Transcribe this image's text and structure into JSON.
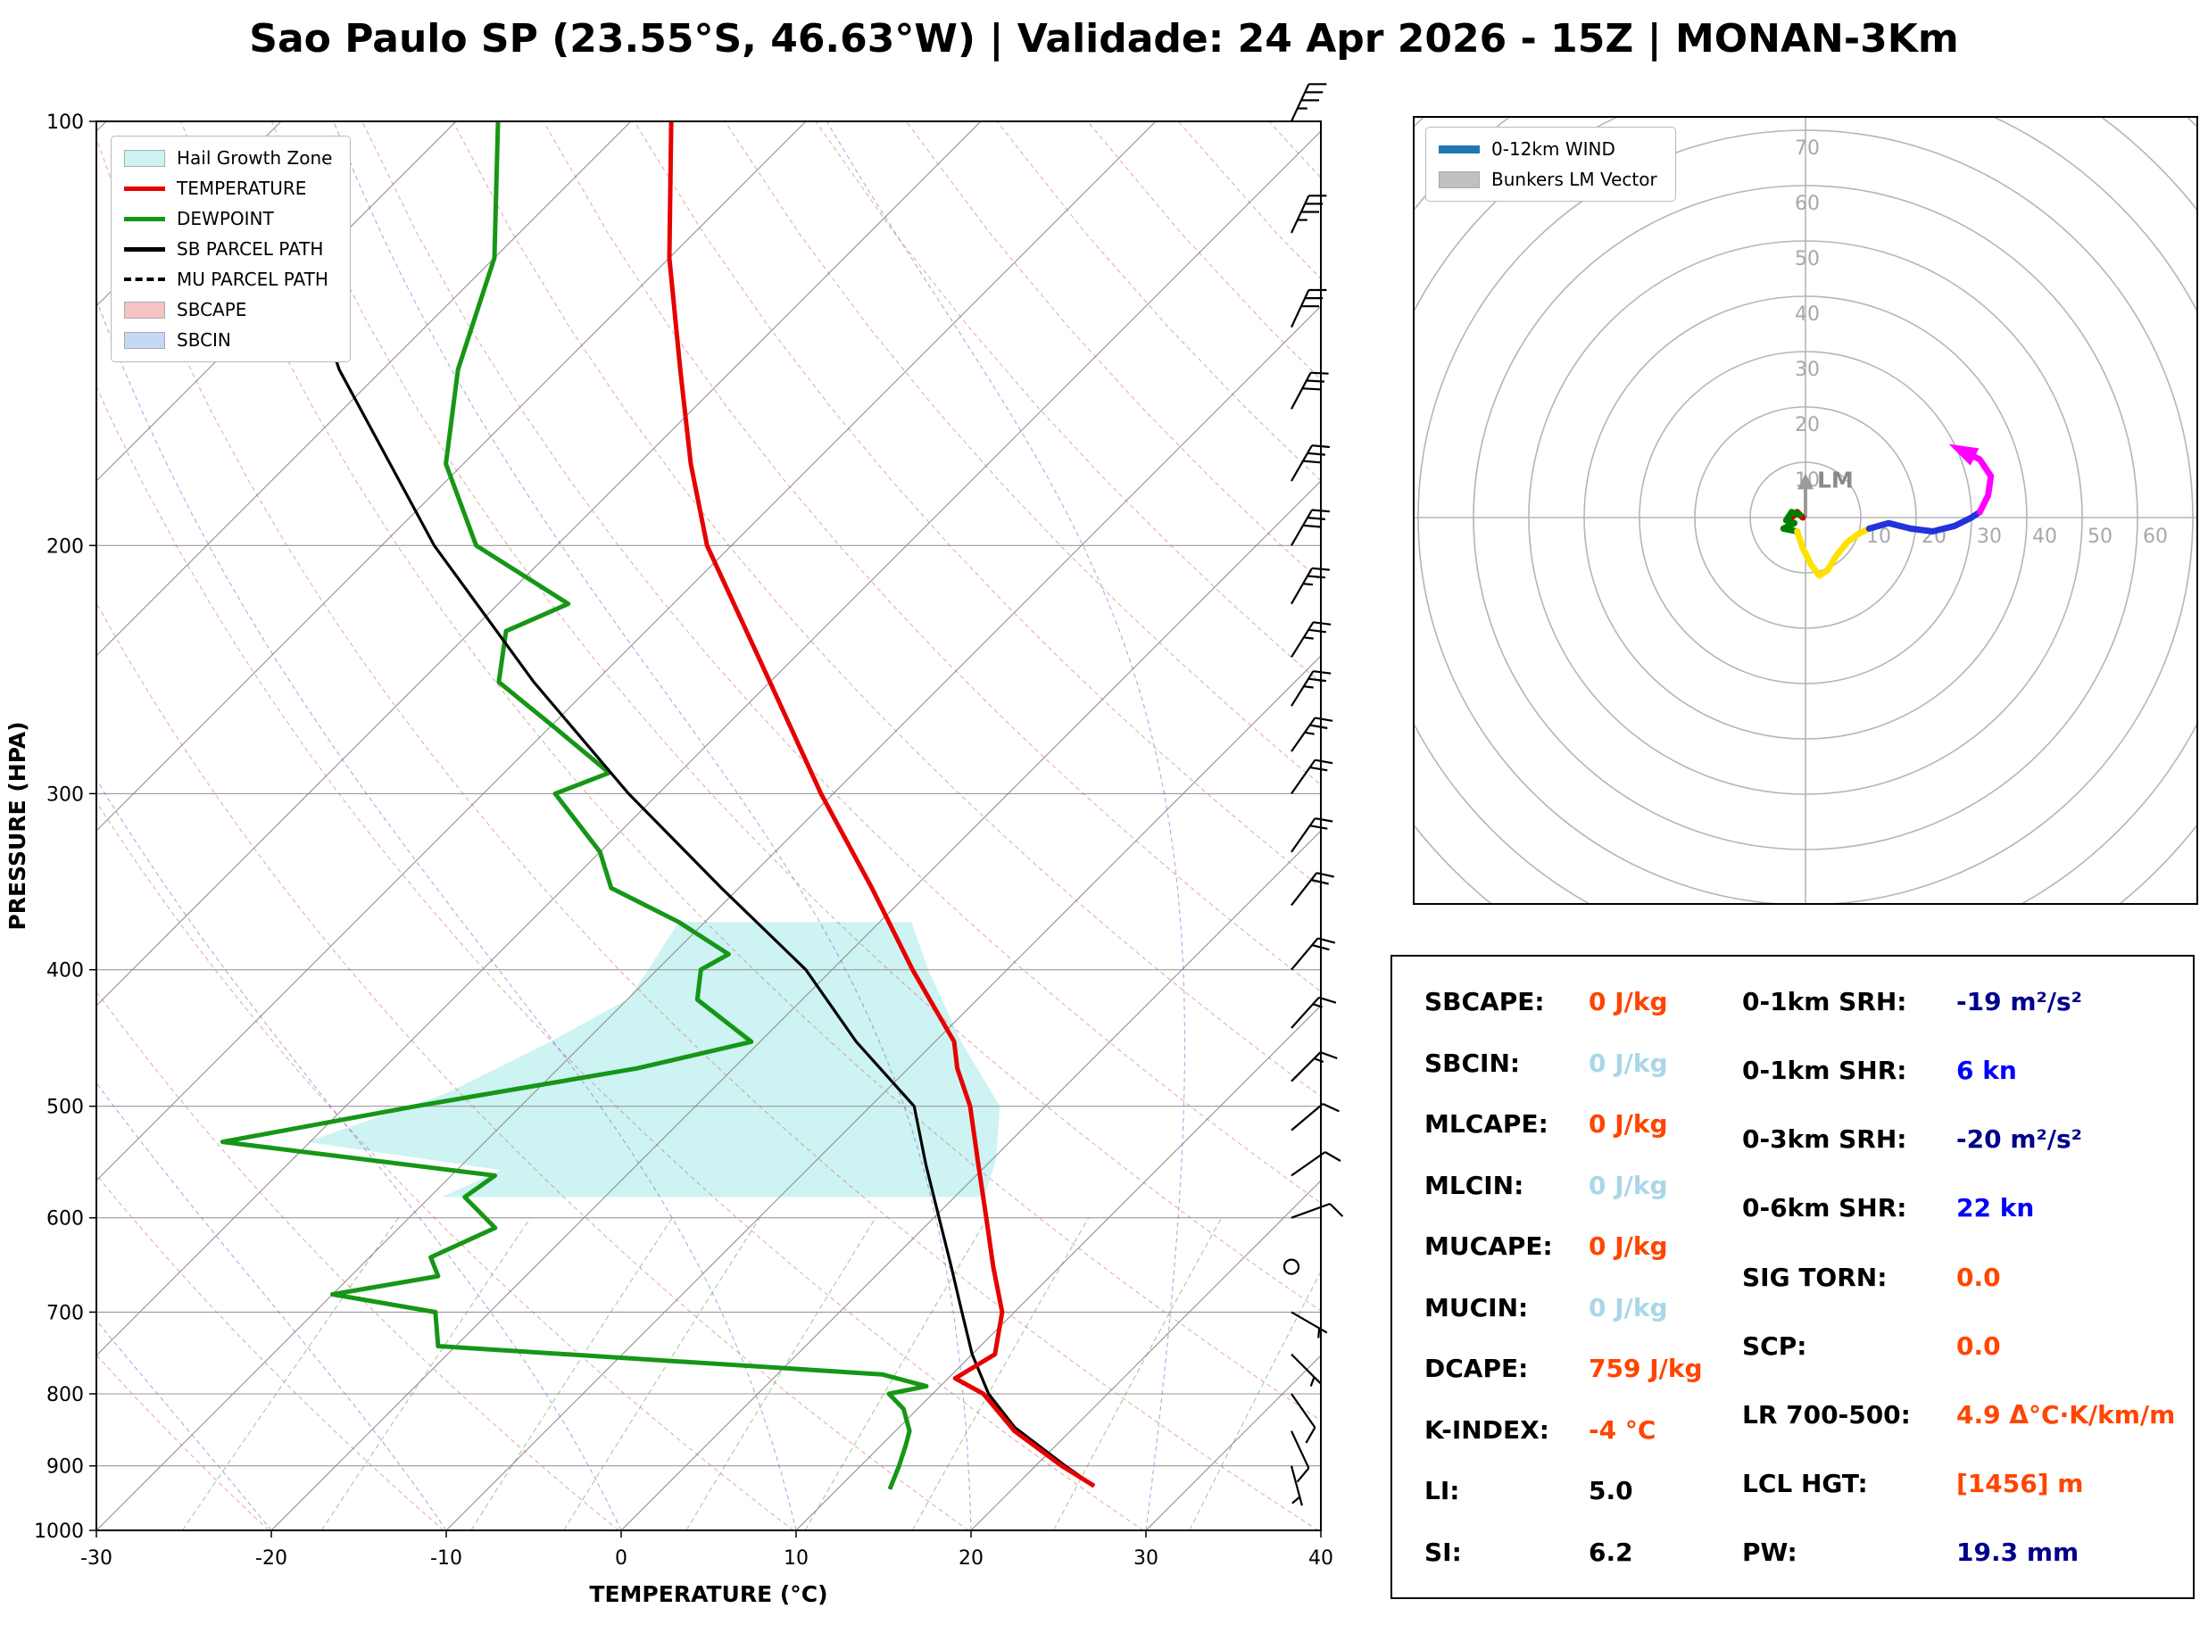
{
  "title": "Sao Paulo SP (23.55°S, 46.63°W) | Validade: 24 Apr 2026 - 15Z | MONAN-3Km",
  "skewt": {
    "xlabel": "TEMPERATURE (°C)",
    "ylabel": "PRESSURE (HPA)",
    "x_ticks": [
      -30,
      -20,
      -10,
      0,
      10,
      20,
      30,
      40
    ],
    "y_ticks": [
      100,
      200,
      300,
      400,
      500,
      600,
      700,
      800,
      900,
      1000
    ],
    "legend": [
      {
        "label": "Hail Growth Zone",
        "type": "patch",
        "color": "#cdf3f3",
        "icon": "hail-zone-swatch"
      },
      {
        "label": "TEMPERATURE",
        "type": "line",
        "color": "#e60000",
        "icon": "temperature-swatch"
      },
      {
        "label": "DEWPOINT",
        "type": "line",
        "color": "#169616",
        "icon": "dewpoint-swatch"
      },
      {
        "label": "SB PARCEL PATH",
        "type": "line",
        "color": "#000000",
        "icon": "sb-parcel-swatch"
      },
      {
        "label": "MU PARCEL PATH",
        "type": "dashed",
        "color": "#000000",
        "icon": "mu-parcel-swatch"
      },
      {
        "label": "SBCAPE",
        "type": "patch",
        "color": "#f6c3c3",
        "icon": "sbcape-swatch"
      },
      {
        "label": "SBCIN",
        "type": "patch",
        "color": "#c3d9f6",
        "icon": "sbcin-swatch"
      }
    ]
  },
  "hodograph": {
    "ring_labels": [
      10,
      20,
      30,
      40,
      50,
      60,
      70
    ],
    "lm_label": "LM",
    "legend": [
      {
        "label": "0-12km WIND",
        "type": "thickline",
        "color": "#1f77b4",
        "icon": "wind-trace-swatch"
      },
      {
        "label": "Bunkers LM Vector",
        "type": "patch",
        "color": "#c0c0c0",
        "icon": "bunkers-lm-swatch"
      }
    ]
  },
  "indices": {
    "left": [
      {
        "label": "SBCAPE:",
        "value": "0 J/kg",
        "color": "orange"
      },
      {
        "label": "SBCIN:",
        "value": "0 J/kg",
        "color": "lightblue"
      },
      {
        "label": "MLCAPE:",
        "value": "0 J/kg",
        "color": "orange"
      },
      {
        "label": "MLCIN:",
        "value": "0 J/kg",
        "color": "lightblue"
      },
      {
        "label": "MUCAPE:",
        "value": "0 J/kg",
        "color": "orange"
      },
      {
        "label": "MUCIN:",
        "value": "0 J/kg",
        "color": "lightblue"
      },
      {
        "label": "DCAPE:",
        "value": "759 J/kg",
        "color": "orange"
      },
      {
        "label": "K-INDEX:",
        "value": "-4 °C",
        "color": "orange"
      },
      {
        "label": "LI:",
        "value": "5.0",
        "color": "black"
      },
      {
        "label": "SI:",
        "value": "6.2",
        "color": "black"
      }
    ],
    "right": [
      {
        "label": "0-1km SRH:",
        "value": "-19 m²/s²",
        "color": "navy"
      },
      {
        "label": "0-1km SHR:",
        "value": "6 kn",
        "color": "blue"
      },
      {
        "label": "0-3km SRH:",
        "value": "-20 m²/s²",
        "color": "navy"
      },
      {
        "label": "0-6km SHR:",
        "value": "22 kn",
        "color": "blue"
      },
      {
        "label": "SIG TORN:",
        "value": "0.0",
        "color": "orange"
      },
      {
        "label": "SCP:",
        "value": "0.0",
        "color": "orange"
      },
      {
        "label": "LR 700-500:",
        "value": "4.9 Δ°C·K/km/m",
        "color": "orange"
      },
      {
        "label": "LCL HGT:",
        "value": "[1456] m",
        "color": "orange"
      },
      {
        "label": "PW:",
        "value": "19.3 mm",
        "color": "navy"
      }
    ]
  },
  "chart_data": {
    "type": "line",
    "projection": "skew-T log-P",
    "title": "Sao Paulo SP (23.55°S, 46.63°W) | Validade: 24 Apr 2026 - 15Z | MONAN-3Km",
    "xlabel": "TEMPERATURE (°C)",
    "ylabel": "PRESSURE (HPA)",
    "xlim": [
      -30,
      40
    ],
    "pressure_range": [
      1000,
      100
    ],
    "y_scale": "log",
    "series": [
      {
        "name": "TEMPERATURE",
        "color": "#e60000",
        "pressure": [
          930,
          900,
          850,
          800,
          780,
          750,
          700,
          650,
          600,
          550,
          500,
          470,
          450,
          400,
          350,
          300,
          250,
          200,
          175,
          150,
          125,
          100
        ],
        "temp": [
          24.5,
          21.5,
          16.8,
          12.9,
          10.4,
          11.3,
          9.3,
          6.2,
          3.0,
          -0.5,
          -4.3,
          -7.2,
          -8.9,
          -15.4,
          -22.4,
          -30.7,
          -40.0,
          -51.4,
          -57.0,
          -63.0,
          -70.0,
          -77.7
        ]
      },
      {
        "name": "DEWPOINT",
        "color": "#169616",
        "pressure": [
          935,
          900,
          870,
          850,
          820,
          800,
          790,
          775,
          740,
          700,
          680,
          660,
          640,
          610,
          580,
          560,
          530,
          500,
          470,
          450,
          420,
          400,
          390,
          370,
          350,
          330,
          300,
          290,
          270,
          250,
          230,
          220,
          200,
          175,
          150,
          125,
          100
        ],
        "temp": [
          13.0,
          12.2,
          11.4,
          10.8,
          9.2,
          7.5,
          9.2,
          6.0,
          -21.0,
          -23.1,
          -30.0,
          -25.0,
          -26.5,
          -24.5,
          -28.0,
          -27.5,
          -45.0,
          -36.0,
          -25.5,
          -20.5,
          -26.0,
          -27.5,
          -26.8,
          -31.5,
          -37.3,
          -40.0,
          -45.9,
          -44.0,
          -49.5,
          -55.5,
          -58.0,
          -56.0,
          -64.6,
          -71.0,
          -75.7,
          -80.0,
          -87.6
        ]
      },
      {
        "name": "SB PARCEL PATH",
        "color": "#000000",
        "pressure": [
          930,
          900,
          845,
          800,
          750,
          700,
          650,
          600,
          550,
          500,
          450,
          400,
          350,
          300,
          250,
          200,
          150,
          125
        ],
        "temp": [
          24.5,
          21.7,
          16.6,
          13.2,
          10.0,
          7.0,
          3.8,
          0.3,
          -3.5,
          -7.5,
          -14.5,
          -21.5,
          -31.0,
          -41.7,
          -53.5,
          -67.0,
          -82.5,
          -91.0
        ]
      },
      {
        "name": "MU PARCEL PATH",
        "color": "#000000",
        "pressure": [
          930,
          900,
          845,
          800,
          750,
          700,
          650,
          600,
          550,
          500,
          450,
          400,
          350,
          300,
          250,
          200,
          150,
          125
        ],
        "temp": [
          24.5,
          21.7,
          16.6,
          13.2,
          10.0,
          7.0,
          3.8,
          0.3,
          -3.5,
          -7.5,
          -14.5,
          -21.5,
          -31.0,
          -41.7,
          -53.5,
          -67.0,
          -82.5,
          -91.0
        ]
      }
    ],
    "hail_growth_zone": {
      "color": "#cdf3f3",
      "pressure": [
        370,
        370,
        400,
        450,
        500,
        545,
        580,
        580,
        555,
        530,
        490,
        450,
        420,
        400,
        370
      ],
      "temp": [
        -31.5,
        -18.2,
        -14.5,
        -8.5,
        -2.6,
        0.2,
        1.7,
        -29.3,
        -27.5,
        -40.2,
        -35.0,
        -32.0,
        -30.0,
        -30.5,
        -31.5
      ]
    },
    "wind_barbs": [
      {
        "p": 100,
        "dir": 25,
        "spd": 35
      },
      {
        "p": 120,
        "dir": 25,
        "spd": 35
      },
      {
        "p": 140,
        "dir": 25,
        "spd": 30
      },
      {
        "p": 160,
        "dir": 28,
        "spd": 30
      },
      {
        "p": 180,
        "dir": 30,
        "spd": 30
      },
      {
        "p": 200,
        "dir": 30,
        "spd": 28
      },
      {
        "p": 220,
        "dir": 30,
        "spd": 25
      },
      {
        "p": 240,
        "dir": 32,
        "spd": 25
      },
      {
        "p": 260,
        "dir": 32,
        "spd": 25
      },
      {
        "p": 280,
        "dir": 35,
        "spd": 25
      },
      {
        "p": 300,
        "dir": 35,
        "spd": 22
      },
      {
        "p": 330,
        "dir": 35,
        "spd": 20
      },
      {
        "p": 360,
        "dir": 38,
        "spd": 20
      },
      {
        "p": 400,
        "dir": 40,
        "spd": 18
      },
      {
        "p": 440,
        "dir": 42,
        "spd": 15
      },
      {
        "p": 480,
        "dir": 45,
        "spd": 15
      },
      {
        "p": 520,
        "dir": 50,
        "spd": 12
      },
      {
        "p": 560,
        "dir": 55,
        "spd": 10
      },
      {
        "p": 600,
        "dir": 70,
        "spd": 8
      },
      {
        "p": 650,
        "dir": 0,
        "spd": 0
      },
      {
        "p": 700,
        "dir": 120,
        "spd": 5
      },
      {
        "p": 750,
        "dir": 135,
        "spd": 5
      },
      {
        "p": 800,
        "dir": 145,
        "spd": 8
      },
      {
        "p": 850,
        "dir": 155,
        "spd": 8
      },
      {
        "p": 900,
        "dir": 165,
        "spd": 5
      }
    ],
    "hodograph": {
      "rings_kn": [
        10,
        20,
        30,
        40,
        50,
        60,
        70
      ],
      "lm_vector": {
        "u": 0,
        "v": 8,
        "label": "LM"
      },
      "segments": [
        {
          "name": "0-1km",
          "color": "#cc0000",
          "u": [
            -0.5,
            -1.5,
            -2.5
          ],
          "v": [
            0,
            1,
            0
          ]
        },
        {
          "name": "1-3km",
          "color": "#008000",
          "u": [
            -1,
            -2.5,
            -3.5,
            -2,
            -4,
            -1.5
          ],
          "v": [
            0.5,
            1,
            -0.5,
            -1,
            -2,
            -2.5
          ]
        },
        {
          "name": "3-6km",
          "color": "#ffe100",
          "u": [
            -1.5,
            -0.5,
            1,
            2.5,
            4,
            5.5,
            7.5,
            9.5,
            11.5
          ],
          "v": [
            -2.5,
            -5.5,
            -8.5,
            -10.5,
            -9.5,
            -7,
            -4.5,
            -3,
            -2
          ]
        },
        {
          "name": "6-9km",
          "color": "#2233dd",
          "u": [
            11.5,
            15,
            19,
            23,
            27,
            30,
            31.5
          ],
          "v": [
            -2,
            -1,
            -2,
            -2.5,
            -1.5,
            0,
            1
          ]
        },
        {
          "name": "9-12km",
          "color": "#ff00ff",
          "u": [
            31.5,
            33,
            33.5,
            31.5,
            28.5
          ],
          "v": [
            1,
            4,
            7.5,
            10.5,
            12
          ]
        }
      ]
    }
  }
}
